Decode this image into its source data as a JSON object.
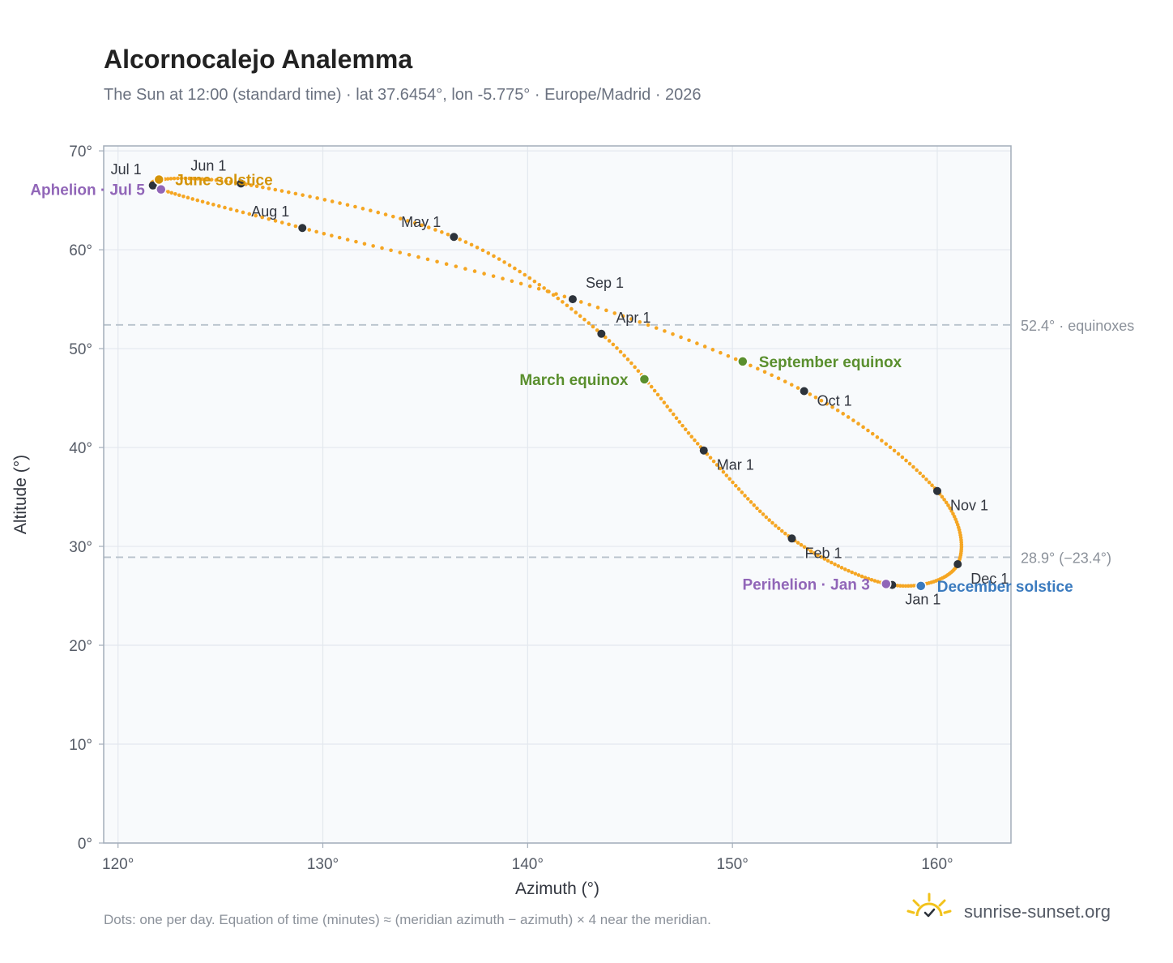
{
  "colors": {
    "curve": "#f5a623",
    "month_dot": "#2d333b",
    "june_solstice": "#d4940a",
    "december_solstice": "#3b7bbf",
    "equinox": "#5a8f2e",
    "apsis": "#9166b8",
    "grid": "#e3e8ee",
    "plot_bg": "#f8fafc",
    "frame": "#a3adba",
    "reference_line": "#b8c2cc",
    "brand_sun": "#f2c21b"
  },
  "footer": {
    "note": "Dots: one per day. Equation of time (minutes) ≈ (meridian azimuth − azimuth) × 4 near the meridian.",
    "brand": "sunrise-sunset.org",
    "brand_icon": "sunrise-logo-icon"
  },
  "chart_data": {
    "type": "scatter",
    "title": "Alcornocalejo Analemma",
    "subtitle": "The Sun at 12:00 (standard time) · lat 37.6454°, lon -5.775° · Europe/Madrid · 2026",
    "xlabel": "Azimuth (°)",
    "ylabel": "Altitude (°)",
    "xlim": [
      119.3,
      163.6
    ],
    "ylim": [
      0,
      70.5
    ],
    "xticks": [
      120,
      130,
      140,
      150,
      160
    ],
    "xtick_labels": [
      "120°",
      "130°",
      "140°",
      "150°",
      "160°"
    ],
    "yticks": [
      0,
      10,
      20,
      30,
      40,
      50,
      60,
      70
    ],
    "ytick_labels": [
      "0°",
      "10°",
      "20°",
      "30°",
      "40°",
      "50°",
      "60°",
      "70°"
    ],
    "grid": true,
    "series": [
      {
        "points": "daily",
        "months": [
          {
            "label": "Jan 1",
            "doy": 1,
            "az": 157.8,
            "alt": 26.1
          },
          {
            "label": "Feb 1",
            "doy": 32,
            "az": 152.9,
            "alt": 30.8
          },
          {
            "label": "Mar 1",
            "doy": 60,
            "az": 148.6,
            "alt": 39.7
          },
          {
            "label": "Apr 1",
            "doy": 91,
            "az": 143.6,
            "alt": 51.5
          },
          {
            "label": "May 1",
            "doy": 121,
            "az": 136.4,
            "alt": 61.3
          },
          {
            "label": "Jun 1",
            "doy": 152,
            "az": 126.0,
            "alt": 66.7
          },
          {
            "label": "Jul 1",
            "doy": 182,
            "az": 121.7,
            "alt": 66.5
          },
          {
            "label": "Aug 1",
            "doy": 213,
            "az": 129.0,
            "alt": 62.2
          },
          {
            "label": "Sep 1",
            "doy": 244,
            "az": 142.2,
            "alt": 55.0
          },
          {
            "label": "Oct 1",
            "doy": 274,
            "az": 153.5,
            "alt": 45.7
          },
          {
            "label": "Nov 1",
            "doy": 305,
            "az": 160.0,
            "alt": 35.6
          },
          {
            "label": "Dec 1",
            "doy": 335,
            "az": 161.0,
            "alt": 28.2
          }
        ]
      }
    ],
    "events": [
      {
        "label": "June solstice",
        "doy": 172,
        "az": 122.0,
        "alt": 67.1,
        "color": "#d4940a",
        "anchor": "start"
      },
      {
        "label": "Aphelion · Jul 5",
        "doy": 186,
        "az": 122.1,
        "alt": 66.1,
        "color": "#9166b8",
        "anchor": "end"
      },
      {
        "label": "March equinox",
        "doy": 79,
        "az": 145.7,
        "alt": 46.9,
        "color": "#5a8f2e",
        "anchor": "end"
      },
      {
        "label": "September equinox",
        "doy": 265,
        "az": 150.5,
        "alt": 48.7,
        "color": "#5a8f2e",
        "anchor": "start"
      },
      {
        "label": "Perihelion · Jan 3",
        "doy": 3,
        "az": 157.5,
        "alt": 26.2,
        "color": "#9166b8",
        "anchor": "end"
      },
      {
        "label": "December solstice",
        "doy": 355,
        "az": 159.2,
        "alt": 26.0,
        "color": "#3b7bbf",
        "anchor": "start"
      }
    ],
    "reference_lines": [
      {
        "value": 52.4,
        "label": "52.4° · equinoxes"
      },
      {
        "value": 28.9,
        "label": "28.9° (−23.4°)"
      }
    ]
  }
}
